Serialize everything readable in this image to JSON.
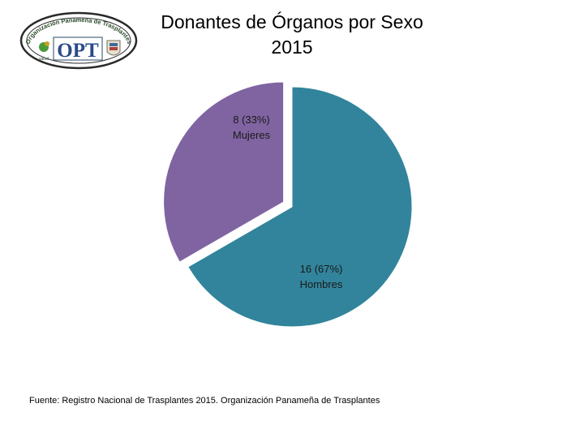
{
  "logo": {
    "arc_text": "Organización Panameña de Trasplantes",
    "mark_text": "OPT",
    "sub_text": "salud"
  },
  "title": {
    "line1": "Donantes de Órganos por Sexo",
    "line2": "2015"
  },
  "chart_data": {
    "type": "pie",
    "title": "Donantes de Órganos por Sexo 2015",
    "slices": [
      {
        "label": "Hombres",
        "value": 16,
        "percent": "67%",
        "color": "#31849b"
      },
      {
        "label": "Mujeres",
        "value": 8,
        "percent": "33%",
        "color": "#8064a2"
      }
    ],
    "data_labels": [
      {
        "value_text": "16  (67%)",
        "category_text": "Hombres"
      },
      {
        "value_text": "8  (33%)",
        "category_text": "Mujeres"
      }
    ]
  },
  "footer": {
    "source": "Fuente: Registro Nacional de Trasplantes 2015.  Organización Panameña de Trasplantes"
  }
}
